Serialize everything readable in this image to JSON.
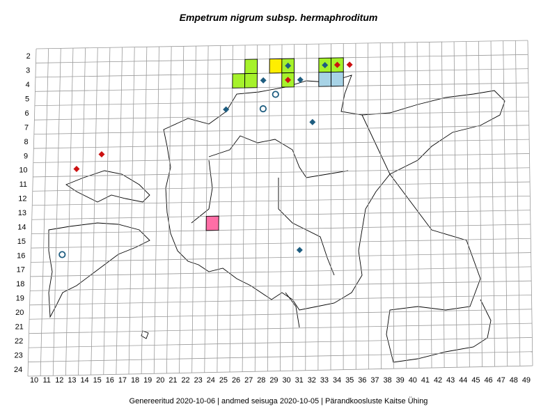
{
  "title": "Empetrum nigrum subsp. hermaphroditum",
  "footer": "Genereeritud 2020-10-06  |  andmed seisuga 2020-10-05  |  Pärandkoosluste Kaitse Ühing",
  "grid": {
    "row_labels": [
      "2",
      "3",
      "4",
      "5",
      "6",
      "7",
      "8",
      "9",
      "10",
      "11",
      "12",
      "13",
      "14",
      "15",
      "16",
      "17",
      "18",
      "19",
      "20",
      "21",
      "22",
      "23",
      "24"
    ],
    "col_labels": [
      "10",
      "11",
      "12",
      "13",
      "14",
      "15",
      "16",
      "17",
      "18",
      "19",
      "20",
      "21",
      "22",
      "23",
      "24",
      "25",
      "26",
      "27",
      "28",
      "29",
      "30",
      "31",
      "32",
      "33",
      "34",
      "35",
      "36",
      "37",
      "38",
      "39",
      "40",
      "41",
      "42",
      "43",
      "44",
      "45",
      "46",
      "47",
      "48",
      "49"
    ]
  },
  "legend_colors": {
    "green_square": "#a6f22b",
    "yellow_square": "#ffee00",
    "blue_square": "#a7d3e6",
    "pink_square": "#ff6ea6",
    "blue_diamond": "#1e5d80",
    "red_diamond": "#cc1111",
    "open_circle": "#1e5d80"
  },
  "cells": [
    {
      "col": 27,
      "row": 3,
      "type": "green_square"
    },
    {
      "col": 26,
      "row": 4,
      "type": "green_square"
    },
    {
      "col": 27,
      "row": 4,
      "type": "green_square"
    },
    {
      "col": 29,
      "row": 3,
      "type": "yellow_square"
    },
    {
      "col": 30,
      "row": 3,
      "type": "green_square"
    },
    {
      "col": 30,
      "row": 4,
      "type": "green_square"
    },
    {
      "col": 33,
      "row": 3,
      "type": "green_square"
    },
    {
      "col": 34,
      "row": 3,
      "type": "green_square"
    },
    {
      "col": 33,
      "row": 4,
      "type": "blue_square"
    },
    {
      "col": 34,
      "row": 4,
      "type": "blue_square"
    },
    {
      "col": 24,
      "row": 14,
      "type": "pink_square"
    }
  ],
  "markers": [
    {
      "col": 30,
      "row": 3,
      "type": "blue_diamond"
    },
    {
      "col": 33,
      "row": 3,
      "type": "blue_diamond"
    },
    {
      "col": 34,
      "row": 3,
      "type": "red_diamond"
    },
    {
      "col": 35,
      "row": 3,
      "type": "red_diamond"
    },
    {
      "col": 28,
      "row": 4,
      "type": "blue_diamond"
    },
    {
      "col": 30,
      "row": 4,
      "type": "red_diamond"
    },
    {
      "col": 31,
      "row": 4,
      "type": "blue_diamond"
    },
    {
      "col": 25,
      "row": 6,
      "type": "blue_diamond"
    },
    {
      "col": 32,
      "row": 7,
      "type": "blue_diamond"
    },
    {
      "col": 15,
      "row": 9,
      "type": "red_diamond"
    },
    {
      "col": 13,
      "row": 10,
      "type": "red_diamond"
    },
    {
      "col": 31,
      "row": 16,
      "type": "blue_diamond"
    },
    {
      "col": 29,
      "row": 5,
      "type": "open_circle"
    },
    {
      "col": 28,
      "row": 6,
      "type": "open_circle"
    },
    {
      "col": 12,
      "row": 16,
      "type": "open_circle"
    }
  ]
}
